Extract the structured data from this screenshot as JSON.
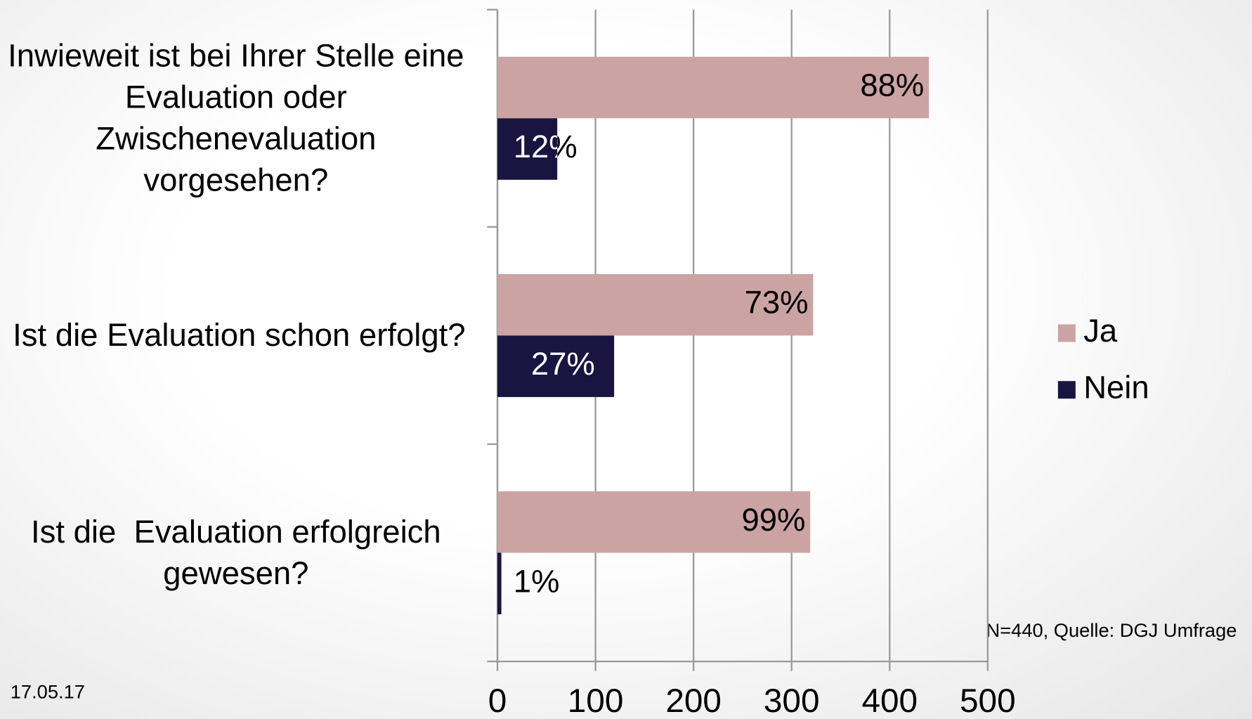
{
  "chart_data": {
    "type": "hbar",
    "categories": [
      "Inwieweit ist bei Ihrer Stelle eine Evaluation oder Zwischenevaluation vorgesehen?",
      "Ist die Evaluation schon erfolgt?",
      "Ist die  Evaluation erfolgreich gewesen?"
    ],
    "series": [
      {
        "name": "Ja",
        "color": "#cca3a3",
        "values": [
          440,
          322,
          319
        ],
        "value_labels": [
          "88%",
          "73%",
          "99%"
        ]
      },
      {
        "name": "Nein",
        "color": "#1a1440",
        "values": [
          61,
          119,
          4
        ],
        "value_labels": [
          "12%",
          "27%",
          "1%"
        ]
      }
    ],
    "xlim": [
      0,
      500
    ],
    "xticks": [
      0,
      100,
      200,
      300,
      400,
      500
    ],
    "grid": true,
    "legend": "right",
    "note": "N=440, Quelle: DGJ Umfrage",
    "date": "17.05.17"
  }
}
